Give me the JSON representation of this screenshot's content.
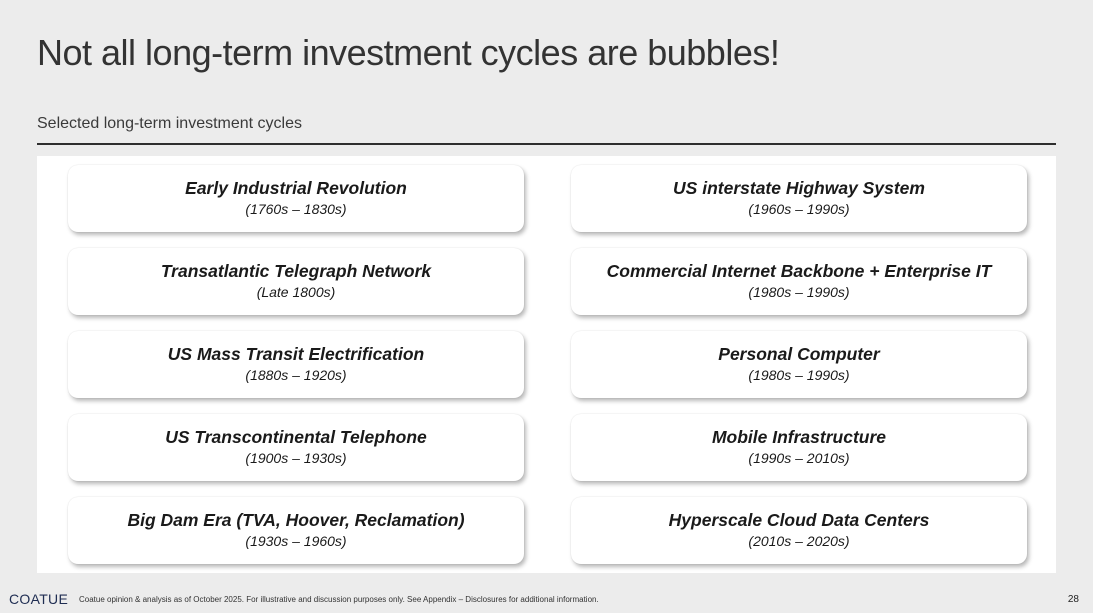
{
  "title": "Not all long-term investment cycles are bubbles!",
  "subtitle": "Selected long-term investment cycles",
  "cycles_left": [
    {
      "name": "Early Industrial Revolution",
      "period": "(1760s – 1830s)"
    },
    {
      "name": "Transatlantic Telegraph Network",
      "period": "(Late 1800s)"
    },
    {
      "name": "US Mass Transit Electrification",
      "period": "(1880s – 1920s)"
    },
    {
      "name": "US Transcontinental Telephone",
      "period": "(1900s – 1930s)"
    },
    {
      "name": "Big Dam Era (TVA, Hoover, Reclamation)",
      "period": "(1930s – 1960s)"
    }
  ],
  "cycles_right": [
    {
      "name": "US interstate Highway System",
      "period": "(1960s – 1990s)"
    },
    {
      "name": "Commercial Internet Backbone + Enterprise IT",
      "period": "(1980s – 1990s)"
    },
    {
      "name": "Personal Computer",
      "period": "(1980s – 1990s)"
    },
    {
      "name": "Mobile Infrastructure",
      "period": "(1990s – 2010s)"
    },
    {
      "name": "Hyperscale Cloud Data Centers",
      "period": "(2010s – 2020s)"
    }
  ],
  "footer": {
    "logo": "COATUE",
    "note": "Coatue opinion & analysis as of October 2025.  For illustrative and discussion purposes only. See Appendix – Disclosures for additional information.",
    "page_number": "28"
  }
}
